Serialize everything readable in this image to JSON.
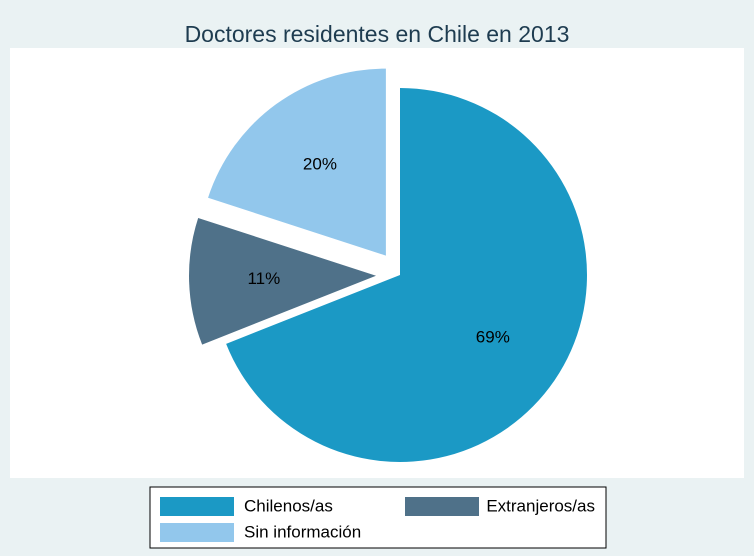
{
  "chart_data": {
    "type": "pie",
    "title": "Doctores residentes en Chile en 2013",
    "categories": [
      "Chilenos/as",
      "Extranjeros/as",
      "Sin información"
    ],
    "values": [
      69,
      11,
      20
    ],
    "value_labels": [
      "69%",
      "11%",
      "20%"
    ],
    "colors": [
      "#1b99c5",
      "#4f7189",
      "#92c7ec"
    ],
    "explode": [
      false,
      true,
      true
    ],
    "legend": "bottom"
  }
}
